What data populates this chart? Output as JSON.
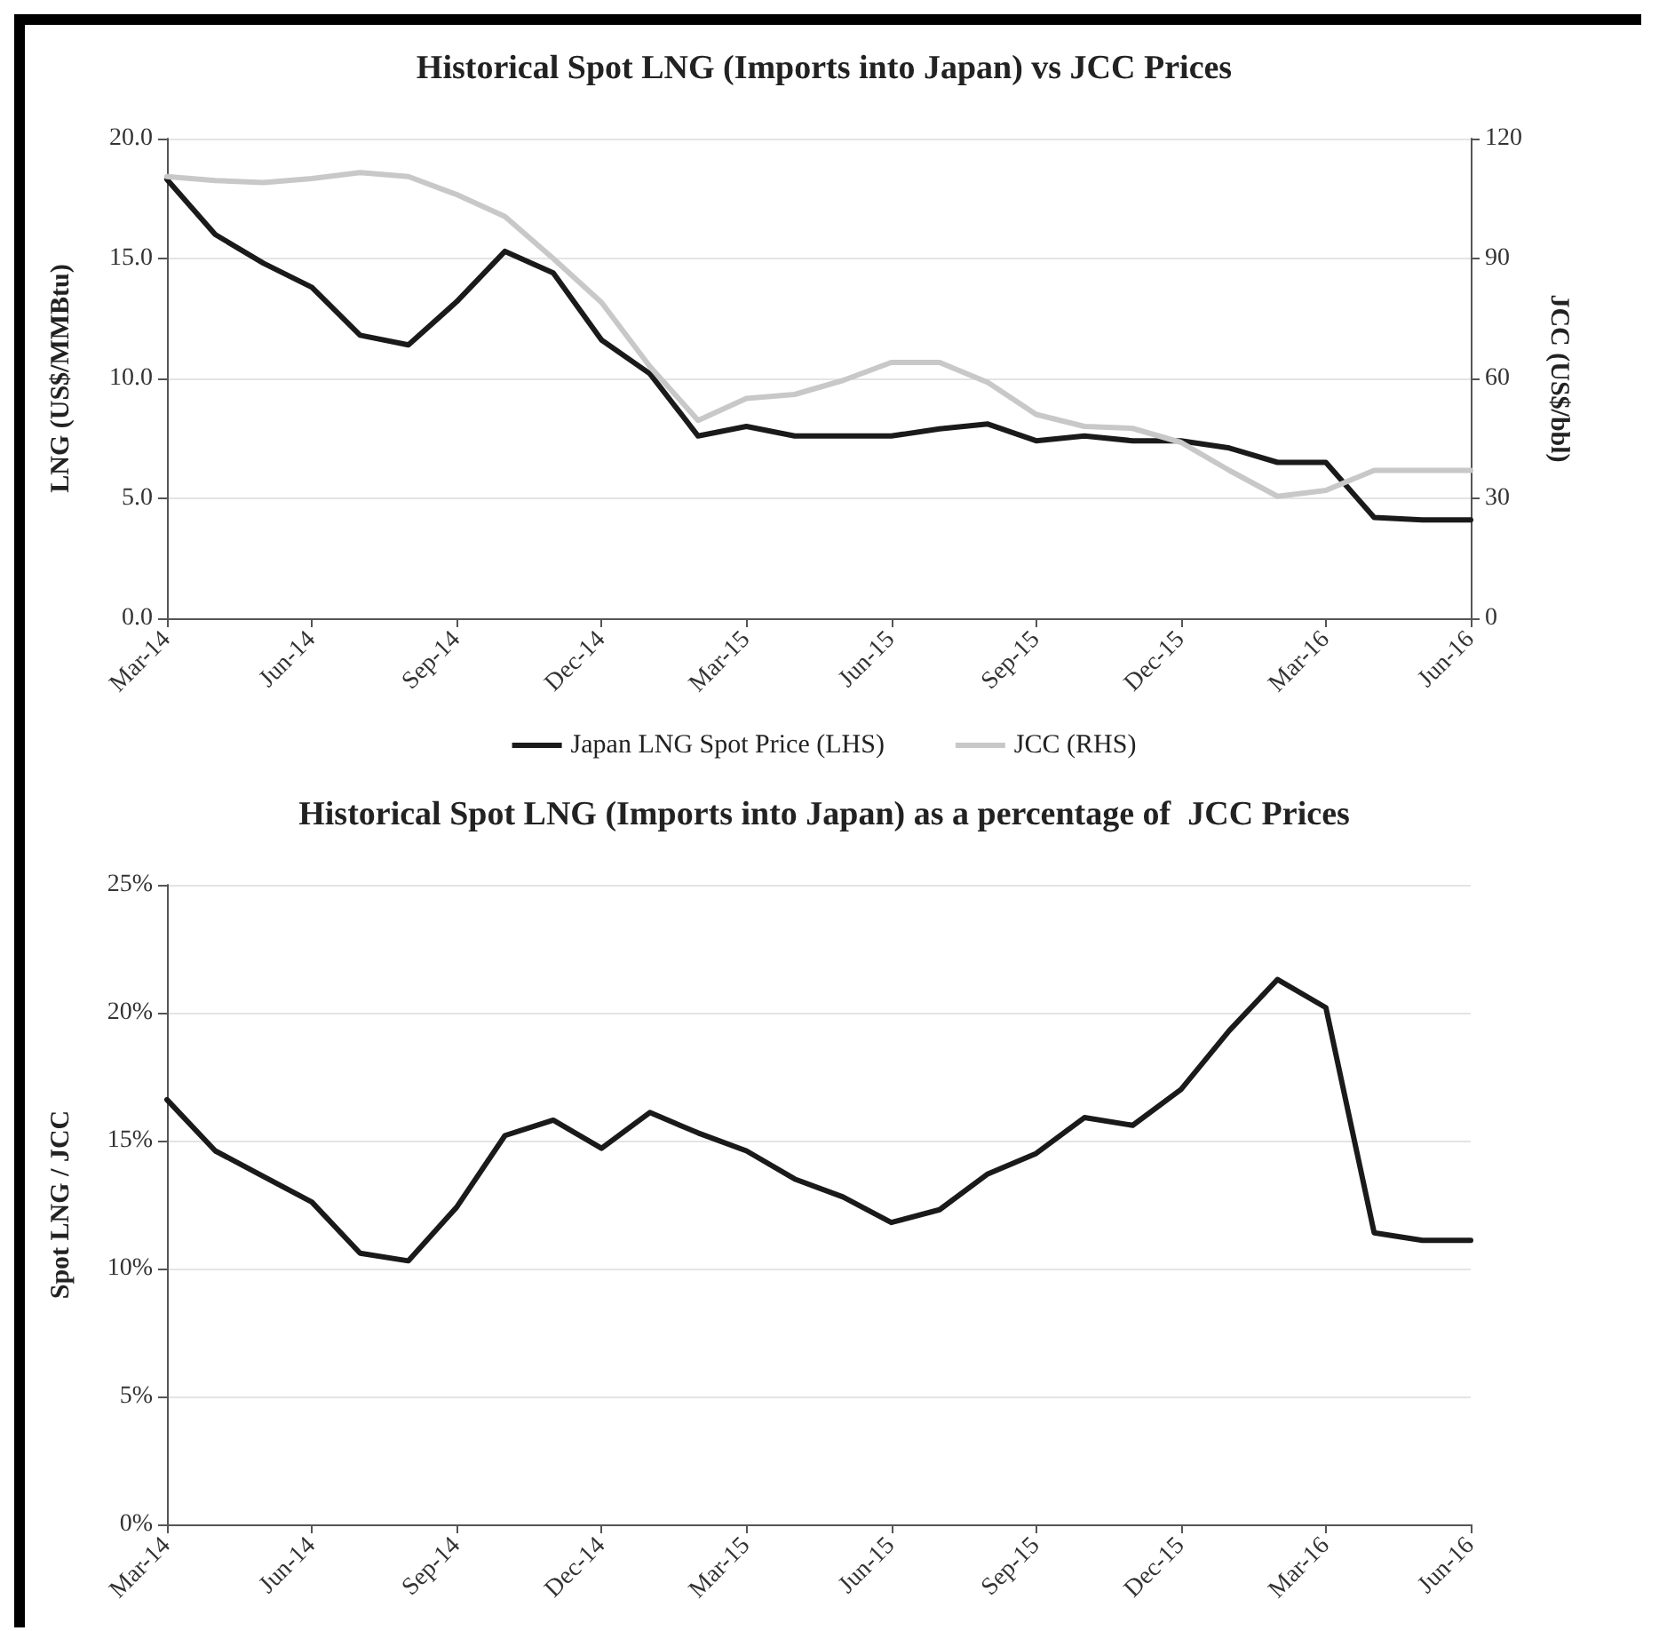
{
  "chart_data": [
    {
      "type": "line",
      "title": "Historical Spot LNG (Imports into Japan) vs JCC Prices",
      "ylabel": "LNG (US$/MMBtu)",
      "y2label": "JCC (US$/bbl)",
      "categories": [
        "Mar-14",
        null,
        null,
        "Jun-14",
        null,
        null,
        "Sep-14",
        null,
        null,
        "Dec-14",
        null,
        null,
        "Mar-15",
        null,
        null,
        "Jun-15",
        null,
        null,
        "Sep-15",
        null,
        null,
        "Dec-15",
        null,
        null,
        "Mar-16",
        null,
        null,
        "Jun-16"
      ],
      "series": [
        {
          "name": "Japan LNG Spot Price (LHS)",
          "color": "#1a1a1a",
          "values": [
            18.3,
            16.0,
            14.8,
            13.8,
            11.8,
            11.4,
            13.2,
            15.3,
            14.4,
            11.6,
            10.2,
            7.6,
            8.0,
            7.6,
            7.6,
            7.6,
            7.9,
            8.1,
            7.4,
            7.6,
            7.4,
            7.4,
            7.1,
            6.5,
            6.5,
            4.2,
            4.1,
            4.1
          ]
        },
        {
          "name": "JCC (RHS)",
          "color": "#c8c8c8",
          "axis": "y2",
          "values": [
            110.5,
            109.5,
            109,
            110,
            111.5,
            110.5,
            106,
            100.5,
            90,
            79,
            63,
            49.5,
            55,
            56,
            59.5,
            64,
            64,
            59,
            51,
            48,
            47.5,
            44,
            37,
            30.5,
            32,
            37,
            37,
            37
          ]
        }
      ],
      "ylim": [
        0,
        20
      ],
      "yticks": [
        {
          "value": 0,
          "label": "0.0"
        },
        {
          "value": 5,
          "label": "5.0"
        },
        {
          "value": 10,
          "label": "10.0"
        },
        {
          "value": 15,
          "label": "15.0"
        },
        {
          "value": 20,
          "label": "20.0"
        }
      ],
      "y2lim": [
        0,
        120
      ],
      "y2ticks": [
        0,
        30,
        60,
        90,
        120
      ],
      "grid": "y",
      "legend": "bottom",
      "marker": "none",
      "line_style": "solid"
    },
    {
      "type": "line",
      "title": "Historical Spot LNG (Imports into Japan) as a percentage of  JCC Prices",
      "ylabel": "Spot LNG / JCC",
      "categories": [
        "Mar-14",
        null,
        null,
        "Jun-14",
        null,
        null,
        "Sep-14",
        null,
        null,
        "Dec-14",
        null,
        null,
        "Mar-15",
        null,
        null,
        "Jun-15",
        null,
        null,
        "Sep-15",
        null,
        null,
        "Dec-15",
        null,
        null,
        "Mar-16",
        null,
        null,
        "Jun-16"
      ],
      "series": [
        {
          "color": "#1a1a1a",
          "values": [
            16.6,
            14.6,
            13.6,
            12.6,
            10.6,
            10.3,
            12.4,
            15.2,
            15.8,
            14.7,
            16.1,
            15.3,
            14.6,
            13.5,
            12.8,
            11.8,
            12.3,
            13.7,
            14.5,
            15.9,
            15.6,
            17.0,
            19.3,
            21.3,
            20.2,
            11.4,
            11.1,
            11.1
          ]
        }
      ],
      "ylim": [
        0,
        25
      ],
      "yticks": [
        {
          "value": 0,
          "label": "0%"
        },
        {
          "value": 5,
          "label": "5%"
        },
        {
          "value": 10,
          "label": "10%"
        },
        {
          "value": 15,
          "label": "15%"
        },
        {
          "value": 20,
          "label": "20%"
        },
        {
          "value": 25,
          "label": "25%"
        }
      ],
      "grid": "y",
      "legend": false,
      "marker": "none",
      "line_style": "solid"
    }
  ]
}
